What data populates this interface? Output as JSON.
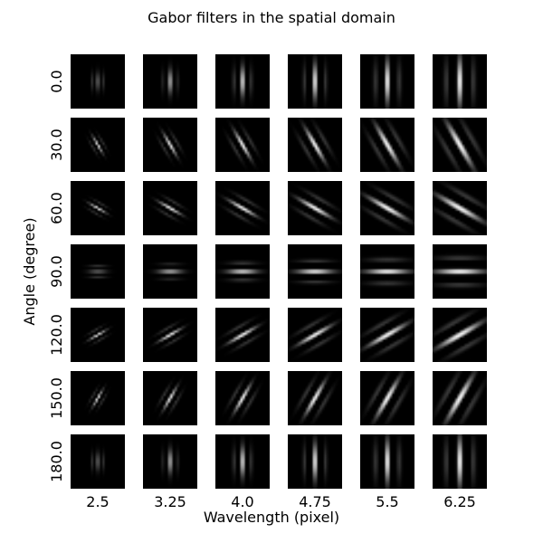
{
  "chart_data": {
    "type": "heatmap",
    "title": "Gabor filters in the spatial domain",
    "xlabel": "Wavelength (pixel)",
    "ylabel": "Angle (degree)",
    "x_tick_labels": [
      "2.5",
      "3.25",
      "4.0",
      "4.75",
      "5.5",
      "6.25"
    ],
    "y_tick_labels": [
      "0.0",
      "30.0",
      "60.0",
      "90.0",
      "120.0",
      "150.0",
      "180.0"
    ],
    "wavelengths": [
      2.5,
      3.25,
      4.0,
      4.75,
      5.5,
      6.25
    ],
    "angles_deg": [
      0,
      30,
      60,
      90,
      120,
      150,
      180
    ],
    "colormap": "gray",
    "background_color": "#000000",
    "foreground_color": "#ffffff",
    "grid": false
  }
}
